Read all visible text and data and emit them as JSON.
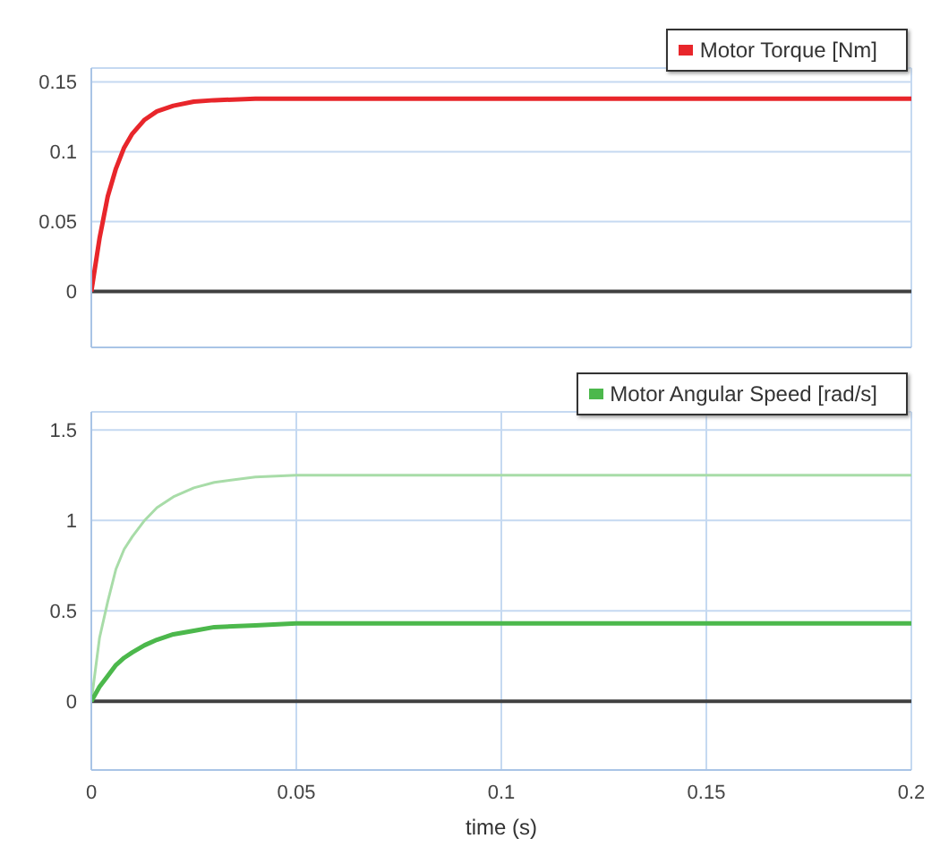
{
  "chart_data": [
    {
      "type": "line",
      "x": [
        0,
        0.002,
        0.004,
        0.006,
        0.008,
        0.01,
        0.013,
        0.016,
        0.02,
        0.025,
        0.03,
        0.04,
        0.05,
        0.1,
        0.15,
        0.2
      ],
      "series": [
        {
          "name": "Motor Torque [Nm]",
          "color": "#e8262b",
          "values": [
            0,
            0.038,
            0.068,
            0.088,
            0.103,
            0.113,
            0.123,
            0.129,
            0.133,
            0.136,
            0.137,
            0.138,
            0.138,
            0.138,
            0.138,
            0.138
          ]
        }
      ],
      "xlim": [
        0,
        0.2
      ],
      "xticks": [
        0,
        0.05,
        0.1,
        0.15,
        0.2
      ],
      "ylim": [
        -0.04,
        0.16
      ],
      "yticks": [
        0,
        0.05,
        0.1,
        0.15
      ],
      "tick_labels": "y",
      "grid": true,
      "legend": "top right",
      "marker": "none",
      "line_style": "solid",
      "ref_lines": [
        {
          "axis": "y",
          "value": 0,
          "color": "#404040"
        }
      ]
    },
    {
      "type": "line",
      "x": [
        0,
        0.002,
        0.004,
        0.006,
        0.008,
        0.01,
        0.013,
        0.016,
        0.02,
        0.025,
        0.03,
        0.04,
        0.05,
        0.1,
        0.15,
        0.2
      ],
      "xlabel": "time (s)",
      "series": [
        {
          "color": "#a8dca8",
          "values": [
            0,
            0.35,
            0.55,
            0.73,
            0.84,
            0.91,
            1.0,
            1.07,
            1.13,
            1.18,
            1.21,
            1.24,
            1.25,
            1.25,
            1.25,
            1.25
          ]
        },
        {
          "name": "Motor Angular Speed [rad/s]",
          "color": "#4cb84c",
          "values": [
            0,
            0.08,
            0.14,
            0.2,
            0.24,
            0.27,
            0.31,
            0.34,
            0.37,
            0.39,
            0.41,
            0.42,
            0.43,
            0.43,
            0.43,
            0.43
          ]
        }
      ],
      "xlim": [
        0,
        0.2
      ],
      "xticks": [
        0,
        0.05,
        0.1,
        0.15,
        0.2
      ],
      "ylim": [
        -0.38,
        1.6
      ],
      "yticks": [
        0,
        0.5,
        1,
        1.5
      ],
      "grid": true,
      "legend": "top right",
      "marker": "none",
      "line_style": "solid",
      "ref_lines": [
        {
          "axis": "y",
          "value": 0,
          "color": "#404040"
        }
      ]
    }
  ]
}
